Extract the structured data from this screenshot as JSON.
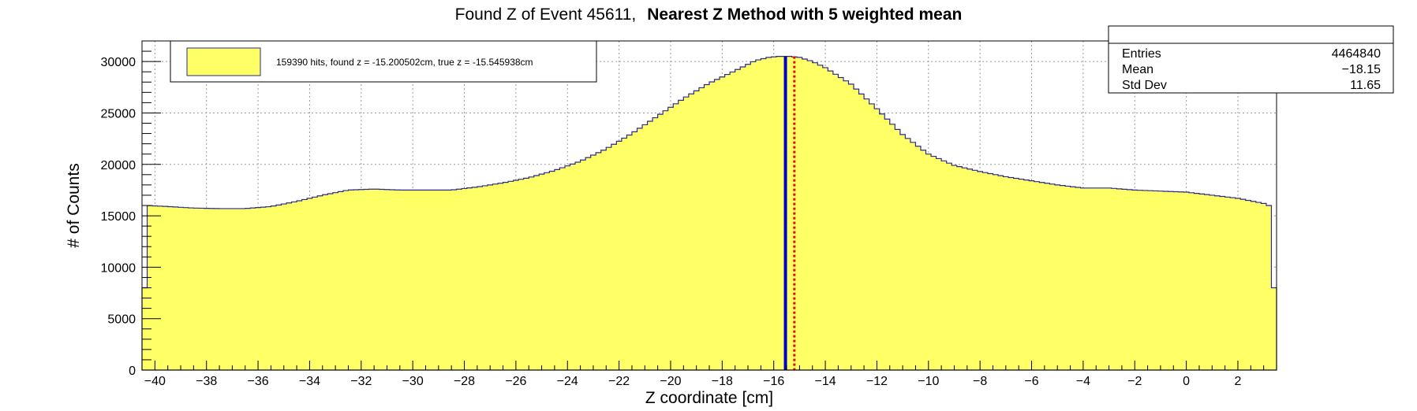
{
  "chart_data": {
    "type": "histogram",
    "title_prefix": "Found Z of Event 45611,",
    "title_bold": "Nearest Z Method with 5 weighted mean",
    "xlabel": "Z coordinate [cm]",
    "ylabel": "# of Counts",
    "xlim": [
      -40.5,
      3.5
    ],
    "ylim": [
      0,
      32000
    ],
    "grid": true,
    "x_ticks": [
      -40,
      -38,
      -36,
      -34,
      -32,
      -30,
      -28,
      -26,
      -24,
      -22,
      -20,
      -18,
      -16,
      -14,
      -12,
      -10,
      -8,
      -6,
      -4,
      -2,
      0,
      2
    ],
    "y_ticks": [
      0,
      5000,
      10000,
      15000,
      20000,
      25000,
      30000
    ],
    "fill_color": "#ffff66",
    "line_color": "#2a2a8a",
    "legend": {
      "position": "top-left",
      "entry": "159390 hits, found z = -15.200502cm, true z = -15.545938cm"
    },
    "stats": {
      "position": "top-right",
      "rows": [
        {
          "label": "Entries",
          "value": "4464840"
        },
        {
          "label": "Mean",
          "value": "−18.15"
        },
        {
          "label": "Std Dev",
          "value": "11.65"
        }
      ]
    },
    "markers": [
      {
        "name": "true z",
        "value": -15.545938,
        "color": "#0000cc",
        "style": "solid"
      },
      {
        "name": "found z",
        "value": -15.200502,
        "color": "#ee0000",
        "style": "dotted"
      }
    ],
    "profile": [
      [
        -40.5,
        8000
      ],
      [
        -40.4,
        8000
      ],
      [
        -40.3,
        16000
      ],
      [
        -39.5,
        15900
      ],
      [
        -38.5,
        15750
      ],
      [
        -37.5,
        15700
      ],
      [
        -36.5,
        15700
      ],
      [
        -35.5,
        15900
      ],
      [
        -34.5,
        16400
      ],
      [
        -33.5,
        17000
      ],
      [
        -32.5,
        17500
      ],
      [
        -31.5,
        17600
      ],
      [
        -30.5,
        17500
      ],
      [
        -29.5,
        17500
      ],
      [
        -28.5,
        17500
      ],
      [
        -27.5,
        17800
      ],
      [
        -26.5,
        18200
      ],
      [
        -25.5,
        18700
      ],
      [
        -24.5,
        19400
      ],
      [
        -23.5,
        20300
      ],
      [
        -22.5,
        21500
      ],
      [
        -21.5,
        23000
      ],
      [
        -20.5,
        24700
      ],
      [
        -19.5,
        26400
      ],
      [
        -18.5,
        27900
      ],
      [
        -17.5,
        29100
      ],
      [
        -16.7,
        30100
      ],
      [
        -16.2,
        30400
      ],
      [
        -15.8,
        30500
      ],
      [
        -15.4,
        30500
      ],
      [
        -15.0,
        30400
      ],
      [
        -14.5,
        30000
      ],
      [
        -14.0,
        29400
      ],
      [
        -13.0,
        27800
      ],
      [
        -12.0,
        25400
      ],
      [
        -11.0,
        22900
      ],
      [
        -10.0,
        21000
      ],
      [
        -9.0,
        19900
      ],
      [
        -8.0,
        19300
      ],
      [
        -7.0,
        18800
      ],
      [
        -6.0,
        18400
      ],
      [
        -5.0,
        18000
      ],
      [
        -4.0,
        17700
      ],
      [
        -3.0,
        17700
      ],
      [
        -2.0,
        17500
      ],
      [
        -1.0,
        17400
      ],
      [
        0.0,
        17300
      ],
      [
        1.0,
        17000
      ],
      [
        2.0,
        16700
      ],
      [
        3.0,
        16200
      ],
      [
        3.2,
        16000
      ],
      [
        3.3,
        8000
      ],
      [
        3.5,
        8000
      ]
    ]
  }
}
